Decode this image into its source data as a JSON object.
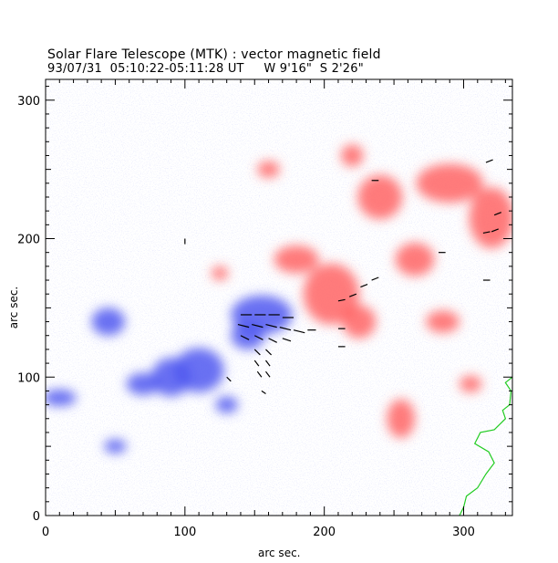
{
  "header": {
    "title": "Solar Flare Telescope (MTK) : vector magnetic field",
    "subtitle": "93/07/31  05:10:22-05:11:28 UT     W 9'16\"  S 2'26\""
  },
  "axes": {
    "xlabel": "arc sec.",
    "ylabel": "arc sec.",
    "xlim": [
      0,
      335
    ],
    "ylim": [
      0,
      315
    ],
    "xticks": [
      "0",
      "100",
      "200",
      "300"
    ],
    "yticks": [
      "0",
      "100",
      "200",
      "300"
    ]
  },
  "colors": {
    "positive_polarity": "#ff5a5a",
    "negative_polarity": "#4f58f0",
    "noise": "#b8bcf2",
    "contour": "#22cc22",
    "vector": "#000000"
  },
  "polarity_regions": {
    "negative": [
      {
        "x": 155,
        "y": 145,
        "rx": 22,
        "ry": 14
      },
      {
        "x": 145,
        "y": 130,
        "rx": 12,
        "ry": 10
      },
      {
        "x": 110,
        "y": 105,
        "rx": 18,
        "ry": 16
      },
      {
        "x": 90,
        "y": 100,
        "rx": 14,
        "ry": 14
      },
      {
        "x": 70,
        "y": 95,
        "rx": 12,
        "ry": 8
      },
      {
        "x": 45,
        "y": 140,
        "rx": 12,
        "ry": 10
      },
      {
        "x": 10,
        "y": 85,
        "rx": 12,
        "ry": 6
      },
      {
        "x": 50,
        "y": 50,
        "rx": 8,
        "ry": 5
      },
      {
        "x": 130,
        "y": 80,
        "rx": 8,
        "ry": 6
      }
    ],
    "positive": [
      {
        "x": 205,
        "y": 160,
        "rx": 20,
        "ry": 22
      },
      {
        "x": 225,
        "y": 140,
        "rx": 12,
        "ry": 12
      },
      {
        "x": 180,
        "y": 185,
        "rx": 16,
        "ry": 10
      },
      {
        "x": 240,
        "y": 230,
        "rx": 16,
        "ry": 16
      },
      {
        "x": 290,
        "y": 240,
        "rx": 24,
        "ry": 14
      },
      {
        "x": 320,
        "y": 215,
        "rx": 16,
        "ry": 22
      },
      {
        "x": 265,
        "y": 185,
        "rx": 14,
        "ry": 12
      },
      {
        "x": 285,
        "y": 140,
        "rx": 12,
        "ry": 8
      },
      {
        "x": 255,
        "y": 70,
        "rx": 10,
        "ry": 14
      },
      {
        "x": 305,
        "y": 95,
        "rx": 8,
        "ry": 6
      },
      {
        "x": 220,
        "y": 260,
        "rx": 8,
        "ry": 8
      },
      {
        "x": 160,
        "y": 250,
        "rx": 8,
        "ry": 6
      },
      {
        "x": 125,
        "y": 175,
        "rx": 6,
        "ry": 5
      }
    ]
  },
  "vectors": [
    [
      140,
      145,
      8,
      0
    ],
    [
      150,
      145,
      8,
      0
    ],
    [
      160,
      145,
      8,
      0
    ],
    [
      170,
      143,
      8,
      0
    ],
    [
      138,
      138,
      8,
      -2
    ],
    [
      148,
      138,
      8,
      -2
    ],
    [
      158,
      138,
      8,
      -2
    ],
    [
      168,
      136,
      8,
      -2
    ],
    [
      178,
      134,
      8,
      -2
    ],
    [
      188,
      134,
      6,
      0
    ],
    [
      140,
      130,
      6,
      -3
    ],
    [
      150,
      130,
      6,
      -3
    ],
    [
      160,
      128,
      6,
      -3
    ],
    [
      170,
      128,
      6,
      -2
    ],
    [
      150,
      120,
      4,
      -4
    ],
    [
      158,
      120,
      4,
      -4
    ],
    [
      150,
      112,
      3,
      -4
    ],
    [
      158,
      112,
      3,
      -4
    ],
    [
      152,
      104,
      3,
      -4
    ],
    [
      158,
      104,
      3,
      -4
    ],
    [
      130,
      100,
      3,
      -3
    ],
    [
      155,
      90,
      3,
      -2
    ],
    [
      210,
      155,
      5,
      1
    ],
    [
      218,
      158,
      5,
      2
    ],
    [
      226,
      165,
      5,
      2
    ],
    [
      234,
      170,
      5,
      2
    ],
    [
      210,
      135,
      5,
      0
    ],
    [
      210,
      122,
      5,
      0
    ],
    [
      234,
      242,
      5,
      0
    ],
    [
      282,
      190,
      5,
      0
    ],
    [
      314,
      170,
      5,
      0
    ],
    [
      314,
      204,
      5,
      1
    ],
    [
      320,
      205,
      5,
      2
    ],
    [
      322,
      217,
      5,
      2
    ],
    [
      316,
      255,
      5,
      2
    ],
    [
      100,
      196,
      0,
      4
    ]
  ],
  "contour_points": [
    [
      335,
      100
    ],
    [
      330,
      96
    ],
    [
      334,
      90
    ],
    [
      333,
      80
    ],
    [
      328,
      76
    ],
    [
      330,
      70
    ],
    [
      322,
      62
    ],
    [
      312,
      60
    ],
    [
      308,
      52
    ],
    [
      318,
      46
    ],
    [
      322,
      38
    ],
    [
      316,
      30
    ],
    [
      310,
      20
    ],
    [
      302,
      14
    ],
    [
      300,
      6
    ],
    [
      297,
      0
    ]
  ]
}
